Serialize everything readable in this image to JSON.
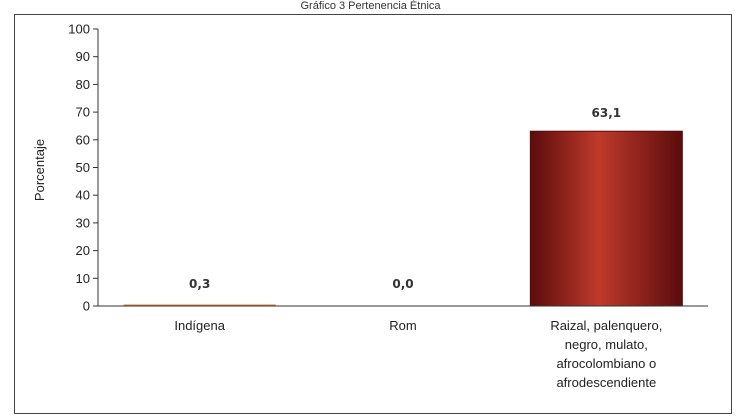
{
  "chart_data": {
    "type": "bar",
    "title": "Gráfico 3 Pertenencia Étnica",
    "ylabel": "Porcentaje",
    "xlabel": "",
    "categories": [
      "Indígena",
      "Rom",
      [
        "Raizal, palenquero,",
        "negro, mulato,",
        "afrocolombiano o",
        "afrodescendiente"
      ]
    ],
    "values": [
      0.3,
      0.0,
      63.1
    ],
    "data_labels": [
      "0,3",
      "0,0",
      "63,1"
    ],
    "ylim": [
      0,
      100
    ],
    "yticks": [
      0,
      10,
      20,
      30,
      40,
      50,
      60,
      70,
      80,
      90,
      100
    ],
    "grid": false,
    "legend": "none",
    "colors": {
      "bar_light": "#c0392b",
      "bar_mid": "#8b1a1a",
      "bar_dark": "#5a0c0c",
      "small_bar": "#e07a3a"
    }
  }
}
